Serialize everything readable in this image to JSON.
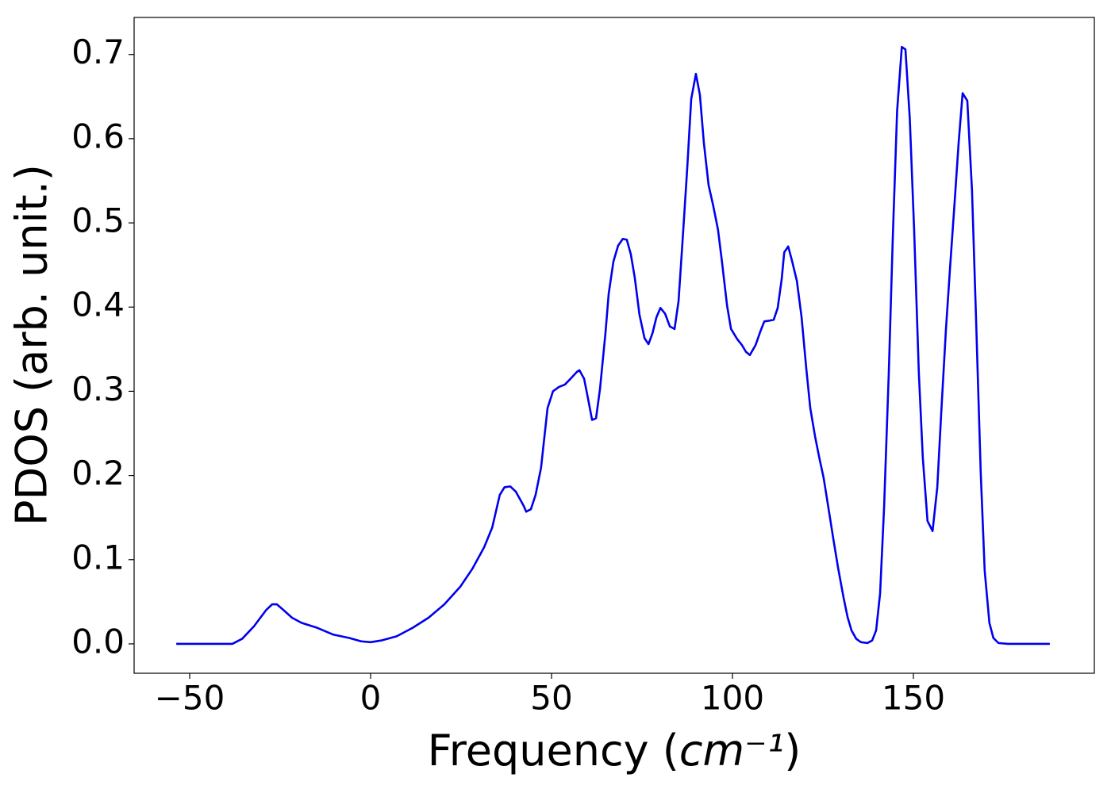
{
  "chart_data": {
    "type": "line",
    "x_label": "Frequency (cm⁻¹)",
    "y_label": "PDOS (arb. unit.)",
    "color": "#0000ee",
    "xlim": [
      -65.35,
      200
    ],
    "ylim": [
      -0.0349,
      0.744
    ],
    "xticks": [
      {
        "value": -50,
        "label": "−50"
      },
      0,
      50,
      100,
      150
    ],
    "yticks": [
      {
        "value": 0,
        "label": "0.0"
      },
      0.1,
      0.2,
      0.3,
      0.4,
      0.5,
      0.6,
      0.7
    ],
    "x": [
      -53.7,
      -38.2,
      -35.5,
      -32.2,
      -28.9,
      -27.2,
      -25.9,
      -24.3,
      -21.7,
      -19.1,
      -14.7,
      -10.3,
      -5.9,
      -2.6,
      0,
      2.9,
      7.2,
      11.6,
      16,
      20.4,
      24.8,
      28.1,
      31.4,
      33.6,
      35.7,
      37,
      38.6,
      40.1,
      42.3,
      43,
      44.3,
      45.6,
      47.1,
      48.9,
      50.4,
      52,
      53.7,
      55.5,
      57,
      57.7,
      59,
      60.1,
      61.2,
      62.3,
      63.4,
      64.9,
      65.8,
      67.1,
      68.4,
      69.7,
      70.8,
      71.9,
      73,
      74.3,
      75.7,
      76.8,
      77.9,
      79,
      80.1,
      81.4,
      82.7,
      84,
      85.1,
      86.2,
      87.5,
      88.6,
      89.9,
      91,
      92.1,
      93.4,
      94.7,
      96,
      97.1,
      98.5,
      99.6,
      101.3,
      102.6,
      103.7,
      104.8,
      106.4,
      107.7,
      108.8,
      110.3,
      111.4,
      112.5,
      113.6,
      114.3,
      115.4,
      116.4,
      117.8,
      119.1,
      120.4,
      121.5,
      122.8,
      123.9,
      125.2,
      126.5,
      127.9,
      129.2,
      130.7,
      131.8,
      132.9,
      134.2,
      135.5,
      137.3,
      138.6,
      139.7,
      140.8,
      141.9,
      143.2,
      144.3,
      145.5,
      146.8,
      147.8,
      149,
      150.2,
      151.5,
      152.6,
      153.9,
      155.3,
      156.6,
      157.7,
      159,
      160.1,
      161.4,
      162.5,
      163.6,
      164.9,
      166.2,
      167.3,
      168.6,
      169.7,
      171,
      172.1,
      173.5,
      176.1,
      187.7
    ],
    "values": [
      0,
      0,
      0.006,
      0.021,
      0.04,
      0.047,
      0.047,
      0.041,
      0.031,
      0.025,
      0.019,
      0.011,
      0.007,
      0.003,
      0.002,
      0.004,
      0.009,
      0.019,
      0.031,
      0.047,
      0.068,
      0.089,
      0.115,
      0.138,
      0.177,
      0.186,
      0.187,
      0.181,
      0.164,
      0.157,
      0.16,
      0.177,
      0.209,
      0.28,
      0.3,
      0.305,
      0.308,
      0.316,
      0.323,
      0.325,
      0.315,
      0.291,
      0.266,
      0.268,
      0.303,
      0.369,
      0.416,
      0.454,
      0.473,
      0.481,
      0.48,
      0.463,
      0.435,
      0.391,
      0.363,
      0.356,
      0.369,
      0.388,
      0.399,
      0.392,
      0.377,
      0.374,
      0.407,
      0.478,
      0.565,
      0.647,
      0.677,
      0.652,
      0.595,
      0.545,
      0.52,
      0.492,
      0.454,
      0.402,
      0.374,
      0.362,
      0.355,
      0.347,
      0.343,
      0.355,
      0.371,
      0.383,
      0.384,
      0.385,
      0.399,
      0.433,
      0.465,
      0.472,
      0.456,
      0.431,
      0.388,
      0.327,
      0.28,
      0.247,
      0.223,
      0.197,
      0.162,
      0.124,
      0.09,
      0.055,
      0.032,
      0.016,
      0.006,
      0.002,
      0.001,
      0.004,
      0.016,
      0.06,
      0.162,
      0.322,
      0.482,
      0.633,
      0.709,
      0.706,
      0.624,
      0.492,
      0.322,
      0.221,
      0.146,
      0.134,
      0.186,
      0.275,
      0.374,
      0.445,
      0.525,
      0.595,
      0.654,
      0.645,
      0.538,
      0.388,
      0.204,
      0.087,
      0.025,
      0.007,
      0.001,
      0,
      0
    ]
  }
}
